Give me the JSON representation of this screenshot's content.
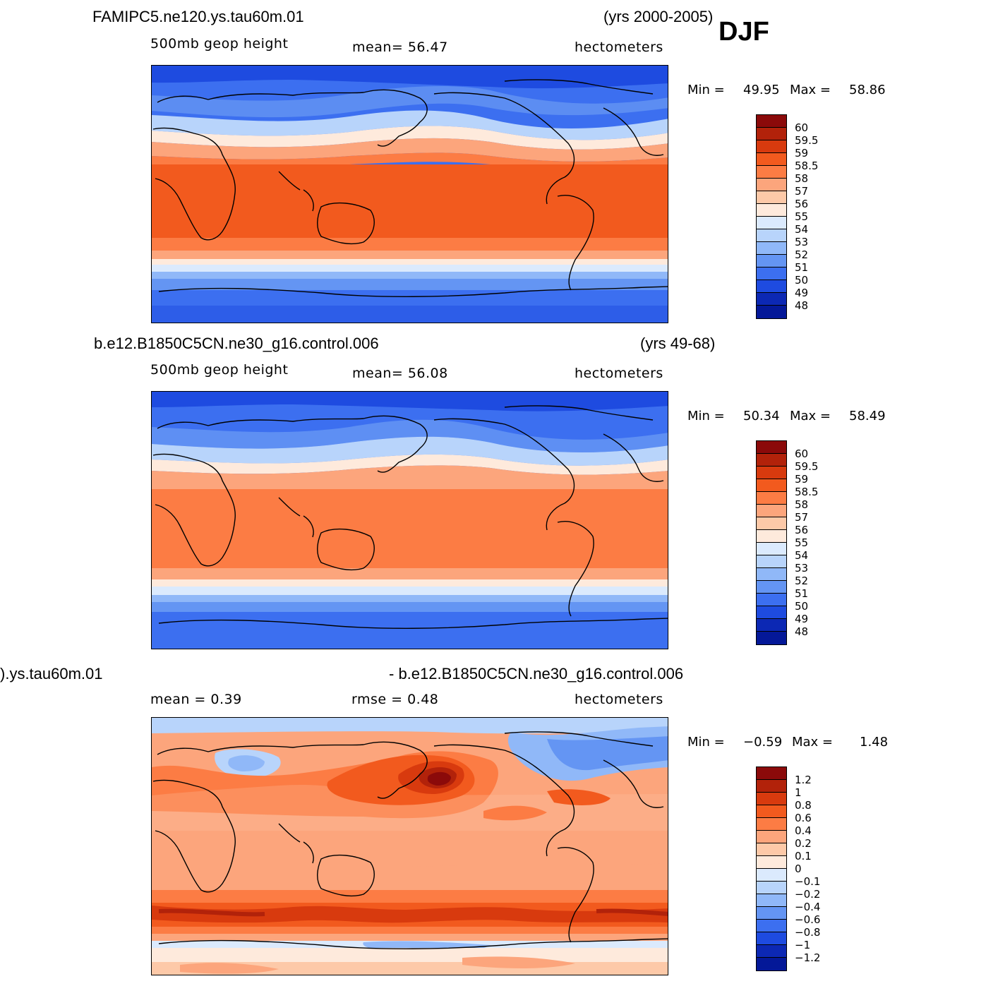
{
  "season": "DJF",
  "panels": [
    {
      "id": "top",
      "case_title": "FAMIPC5.ne120.ys.tau60m.01",
      "years": "(yrs 2000-2005)",
      "left_label": "500mb  geop  height",
      "mid_label": "mean=   56.47",
      "units": "hectometers",
      "min_label": "Min  =",
      "min_value": "49.95",
      "max_label": "Max  =",
      "max_value": "58.86"
    },
    {
      "id": "middle",
      "case_title": "b.e12.B1850C5CN.ne30_g16.control.006",
      "years": "(yrs 49-68)",
      "left_label": "500mb  geop  height",
      "mid_label": "mean=   56.08",
      "units": "hectometers",
      "min_label": "Min  =",
      "min_value": "50.34",
      "max_label": "Max  =",
      "max_value": "58.49"
    },
    {
      "id": "diff",
      "case_title": ").ys.tau60m.01",
      "years": "- b.e12.B1850C5CN.ne30_g16.control.006",
      "left_label": "mean  =     0.39",
      "mid_label": "rmse  =     0.48",
      "units": "hectometers",
      "min_label": "Min  =",
      "min_value": "−0.59",
      "max_label": "Max  =",
      "max_value": "1.48"
    }
  ],
  "colorbar_abs": {
    "labels": [
      "60",
      "59.5",
      "59",
      "58.5",
      "58",
      "57",
      "56",
      "55",
      "54",
      "53",
      "52",
      "51",
      "50",
      "49",
      "48"
    ],
    "colors": [
      "#8b0a0a",
      "#b2220a",
      "#d83a0e",
      "#f25a1e",
      "#fc7c44",
      "#fca57c",
      "#fdc9a8",
      "#feeadc",
      "#dbeafd",
      "#b8d4fb",
      "#90b8f8",
      "#6495f3",
      "#3c6ff0",
      "#1e4be0",
      "#0c28b4",
      "#041898"
    ]
  },
  "colorbar_diff": {
    "labels": [
      "1.2",
      "1",
      "0.8",
      "0.6",
      "0.4",
      "0.2",
      "0.1",
      "0",
      "−0.1",
      "−0.2",
      "−0.4",
      "−0.6",
      "−0.8",
      "−1",
      "−1.2"
    ],
    "colors": [
      "#8b0a0a",
      "#b2220a",
      "#d83a0e",
      "#f25a1e",
      "#fc7c44",
      "#fca57c",
      "#fdc9a8",
      "#feeadc",
      "#dbeafd",
      "#b8d4fb",
      "#90b8f8",
      "#6495f3",
      "#3c6ff0",
      "#1e4be0",
      "#0c28b4",
      "#041898"
    ]
  }
}
